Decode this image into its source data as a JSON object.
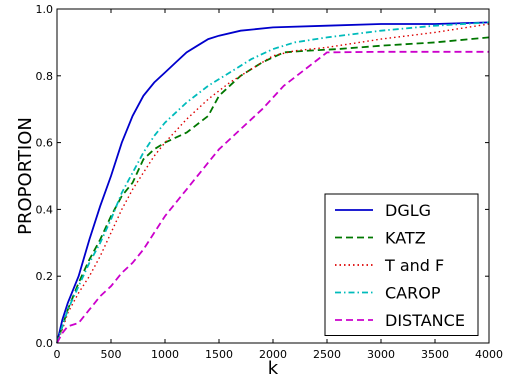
{
  "chart_data": {
    "type": "line",
    "title": "",
    "xlabel": "k",
    "ylabel": "PROPORTION",
    "xlim": [
      0,
      4000
    ],
    "ylim": [
      0.0,
      1.0
    ],
    "xticks": [
      0,
      500,
      1000,
      1500,
      2000,
      2500,
      3000,
      3500,
      4000
    ],
    "xtick_labels": [
      "0",
      "500",
      "1000",
      "1500",
      "2000",
      "2500",
      "3000",
      "3500",
      "4000"
    ],
    "yticks": [
      0.0,
      0.2,
      0.4,
      0.6,
      0.8,
      1.0
    ],
    "ytick_labels": [
      "0.0",
      "0.2",
      "0.4",
      "0.6",
      "0.8",
      "1.0"
    ],
    "grid": false,
    "legend_position": "bottom-right",
    "series": [
      {
        "name": "DGLG",
        "color": "#0000cc",
        "style": "solid",
        "points": [
          [
            0,
            0
          ],
          [
            50,
            0.07
          ],
          [
            100,
            0.12
          ],
          [
            200,
            0.2
          ],
          [
            300,
            0.31
          ],
          [
            400,
            0.41
          ],
          [
            500,
            0.5
          ],
          [
            600,
            0.6
          ],
          [
            700,
            0.68
          ],
          [
            800,
            0.74
          ],
          [
            900,
            0.78
          ],
          [
            1000,
            0.81
          ],
          [
            1100,
            0.84
          ],
          [
            1200,
            0.87
          ],
          [
            1300,
            0.89
          ],
          [
            1400,
            0.91
          ],
          [
            1500,
            0.92
          ],
          [
            1700,
            0.935
          ],
          [
            2000,
            0.945
          ],
          [
            2500,
            0.95
          ],
          [
            3000,
            0.955
          ],
          [
            3500,
            0.955
          ],
          [
            4000,
            0.96
          ]
        ]
      },
      {
        "name": "KATZ",
        "color": "#007700",
        "style": "dashed",
        "points": [
          [
            0,
            0
          ],
          [
            50,
            0.05
          ],
          [
            100,
            0.1
          ],
          [
            200,
            0.18
          ],
          [
            300,
            0.25
          ],
          [
            400,
            0.31
          ],
          [
            500,
            0.38
          ],
          [
            600,
            0.44
          ],
          [
            700,
            0.48
          ],
          [
            800,
            0.55
          ],
          [
            900,
            0.58
          ],
          [
            1000,
            0.6
          ],
          [
            1200,
            0.63
          ],
          [
            1400,
            0.68
          ],
          [
            1500,
            0.74
          ],
          [
            1700,
            0.8
          ],
          [
            1900,
            0.84
          ],
          [
            2100,
            0.87
          ],
          [
            2300,
            0.875
          ],
          [
            2600,
            0.88
          ],
          [
            3000,
            0.89
          ],
          [
            3500,
            0.9
          ],
          [
            4000,
            0.915
          ]
        ]
      },
      {
        "name": "T and F",
        "color": "#dd0000",
        "style": "dotted",
        "points": [
          [
            0,
            0
          ],
          [
            50,
            0.04
          ],
          [
            100,
            0.09
          ],
          [
            200,
            0.15
          ],
          [
            300,
            0.2
          ],
          [
            400,
            0.26
          ],
          [
            500,
            0.33
          ],
          [
            600,
            0.4
          ],
          [
            700,
            0.46
          ],
          [
            800,
            0.51
          ],
          [
            900,
            0.56
          ],
          [
            1000,
            0.6
          ],
          [
            1200,
            0.67
          ],
          [
            1400,
            0.73
          ],
          [
            1600,
            0.78
          ],
          [
            1800,
            0.82
          ],
          [
            2000,
            0.86
          ],
          [
            2200,
            0.875
          ],
          [
            2500,
            0.885
          ],
          [
            3000,
            0.91
          ],
          [
            3500,
            0.93
          ],
          [
            4000,
            0.955
          ]
        ]
      },
      {
        "name": "CAROP",
        "color": "#00bbbb",
        "style": "dashdot",
        "points": [
          [
            0,
            0
          ],
          [
            50,
            0.05
          ],
          [
            100,
            0.1
          ],
          [
            200,
            0.17
          ],
          [
            300,
            0.24
          ],
          [
            400,
            0.3
          ],
          [
            500,
            0.37
          ],
          [
            600,
            0.45
          ],
          [
            700,
            0.51
          ],
          [
            800,
            0.57
          ],
          [
            900,
            0.62
          ],
          [
            1000,
            0.66
          ],
          [
            1200,
            0.72
          ],
          [
            1400,
            0.77
          ],
          [
            1600,
            0.81
          ],
          [
            1800,
            0.85
          ],
          [
            2000,
            0.88
          ],
          [
            2200,
            0.9
          ],
          [
            2500,
            0.915
          ],
          [
            3000,
            0.935
          ],
          [
            3500,
            0.95
          ],
          [
            4000,
            0.96
          ]
        ]
      },
      {
        "name": "DISTANCE",
        "color": "#cc00cc",
        "style": "dashed",
        "points": [
          [
            0,
            0
          ],
          [
            50,
            0.03
          ],
          [
            100,
            0.05
          ],
          [
            200,
            0.06
          ],
          [
            300,
            0.1
          ],
          [
            400,
            0.14
          ],
          [
            500,
            0.17
          ],
          [
            600,
            0.21
          ],
          [
            700,
            0.24
          ],
          [
            800,
            0.28
          ],
          [
            900,
            0.33
          ],
          [
            1000,
            0.38
          ],
          [
            1100,
            0.42
          ],
          [
            1200,
            0.46
          ],
          [
            1300,
            0.5
          ],
          [
            1400,
            0.54
          ],
          [
            1500,
            0.58
          ],
          [
            1700,
            0.64
          ],
          [
            1900,
            0.7
          ],
          [
            2100,
            0.77
          ],
          [
            2300,
            0.82
          ],
          [
            2500,
            0.87
          ],
          [
            3000,
            0.872
          ],
          [
            3500,
            0.872
          ],
          [
            4000,
            0.872
          ]
        ]
      }
    ]
  }
}
